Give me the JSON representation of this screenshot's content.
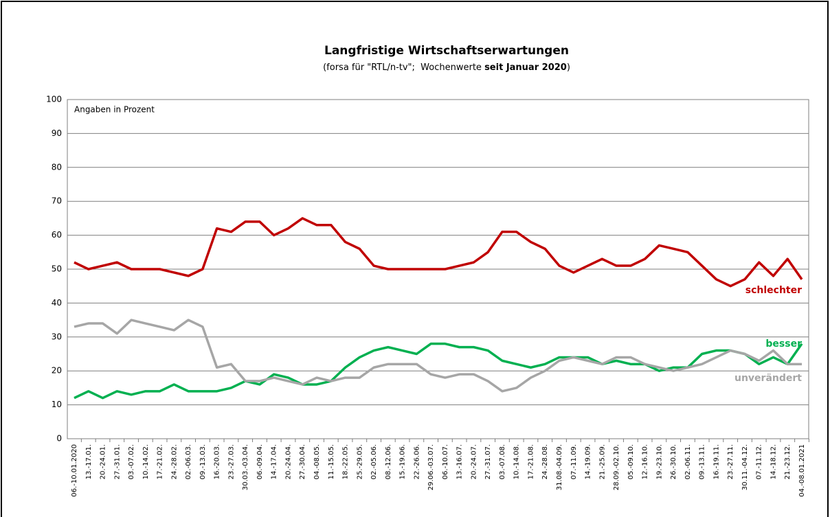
{
  "chart_data": {
    "type": "line",
    "title": "Langfristige Wirtschaftserwartungen",
    "subtitle": {
      "before": "(forsa für \"RTL/n-tv\";  Wochenwerte ",
      "bold": "seit Januar 2020",
      "after": ")"
    },
    "annotation": "Angaben in Prozent",
    "categories": [
      "06.-10.01.2020",
      "13.-17.01.",
      "20.-24.01.",
      "27.-31.01.",
      "03.-07.02.",
      "10.-14.02.",
      "17.-21.02.",
      "24.-28.02.",
      "02.-06.03.",
      "09.-13.03.",
      "16.-20.03.",
      "23.-27.03.",
      "30.03.-03.04.",
      "06.-09.04.",
      "14.-17.04.",
      "20.-24.04.",
      "27.-30.04.",
      "04.-08.05.",
      "11.-15.05.",
      "18.-22.05.",
      "25.-29.05.",
      "02.-05.06.",
      "08.-12.06.",
      "15.-19.06.",
      "22.-26.06.",
      "29.06.-03.07.",
      "06.-10.07.",
      "13.-16.07.",
      "20.-24.07.",
      "27.-31.07.",
      "03.-07.08.",
      "10.-14.08.",
      "17.-21.08.",
      "24.-28.08.",
      "31.08.-04.09.",
      "07.-11.09.",
      "14.-19.09.",
      "21.-25.09.",
      "28.09.-02.10.",
      "05.-09.10.",
      "12.-16.10.",
      "19.-23.10.",
      "26.-30.10.",
      "02.-06.11.",
      "09.-13.11.",
      "16.-19.11.",
      "23.-27.11.",
      "30.11.-04.12.",
      "07.-11.12.",
      "14.-18.12.",
      "21.-23.12.",
      "04.-08.01.2021"
    ],
    "series": [
      {
        "name": "schlechter",
        "color": "#c00000",
        "values": [
          52,
          50,
          51,
          52,
          50,
          50,
          50,
          49,
          48,
          50,
          62,
          61,
          64,
          64,
          60,
          62,
          65,
          63,
          63,
          58,
          56,
          51,
          50,
          50,
          50,
          50,
          50,
          51,
          52,
          55,
          61,
          61,
          58,
          56,
          51,
          49,
          51,
          53,
          51,
          51,
          53,
          57,
          56,
          55,
          51,
          47,
          45,
          47,
          52,
          48,
          53,
          47
        ]
      },
      {
        "name": "besser",
        "color": "#00b050",
        "values": [
          12,
          14,
          12,
          14,
          13,
          14,
          14,
          16,
          14,
          14,
          14,
          15,
          17,
          16,
          19,
          18,
          16,
          16,
          17,
          21,
          24,
          26,
          27,
          26,
          25,
          28,
          28,
          27,
          27,
          26,
          23,
          22,
          21,
          22,
          24,
          24,
          24,
          22,
          23,
          22,
          22,
          20,
          21,
          21,
          25,
          26,
          26,
          25,
          22,
          24,
          22,
          28
        ]
      },
      {
        "name": "unverändert",
        "color": "#a6a6a6",
        "values": [
          33,
          34,
          34,
          31,
          35,
          34,
          33,
          32,
          35,
          33,
          21,
          22,
          17,
          17,
          18,
          17,
          16,
          18,
          17,
          18,
          18,
          21,
          22,
          22,
          22,
          19,
          18,
          19,
          19,
          17,
          14,
          15,
          18,
          20,
          23,
          24,
          23,
          22,
          24,
          24,
          22,
          21,
          20,
          21,
          22,
          24,
          26,
          25,
          23,
          26,
          22,
          22
        ]
      }
    ],
    "ylim": [
      0,
      100
    ],
    "yticks": [
      0,
      10,
      20,
      30,
      40,
      50,
      60,
      70,
      80,
      90,
      100
    ],
    "grid": true
  }
}
